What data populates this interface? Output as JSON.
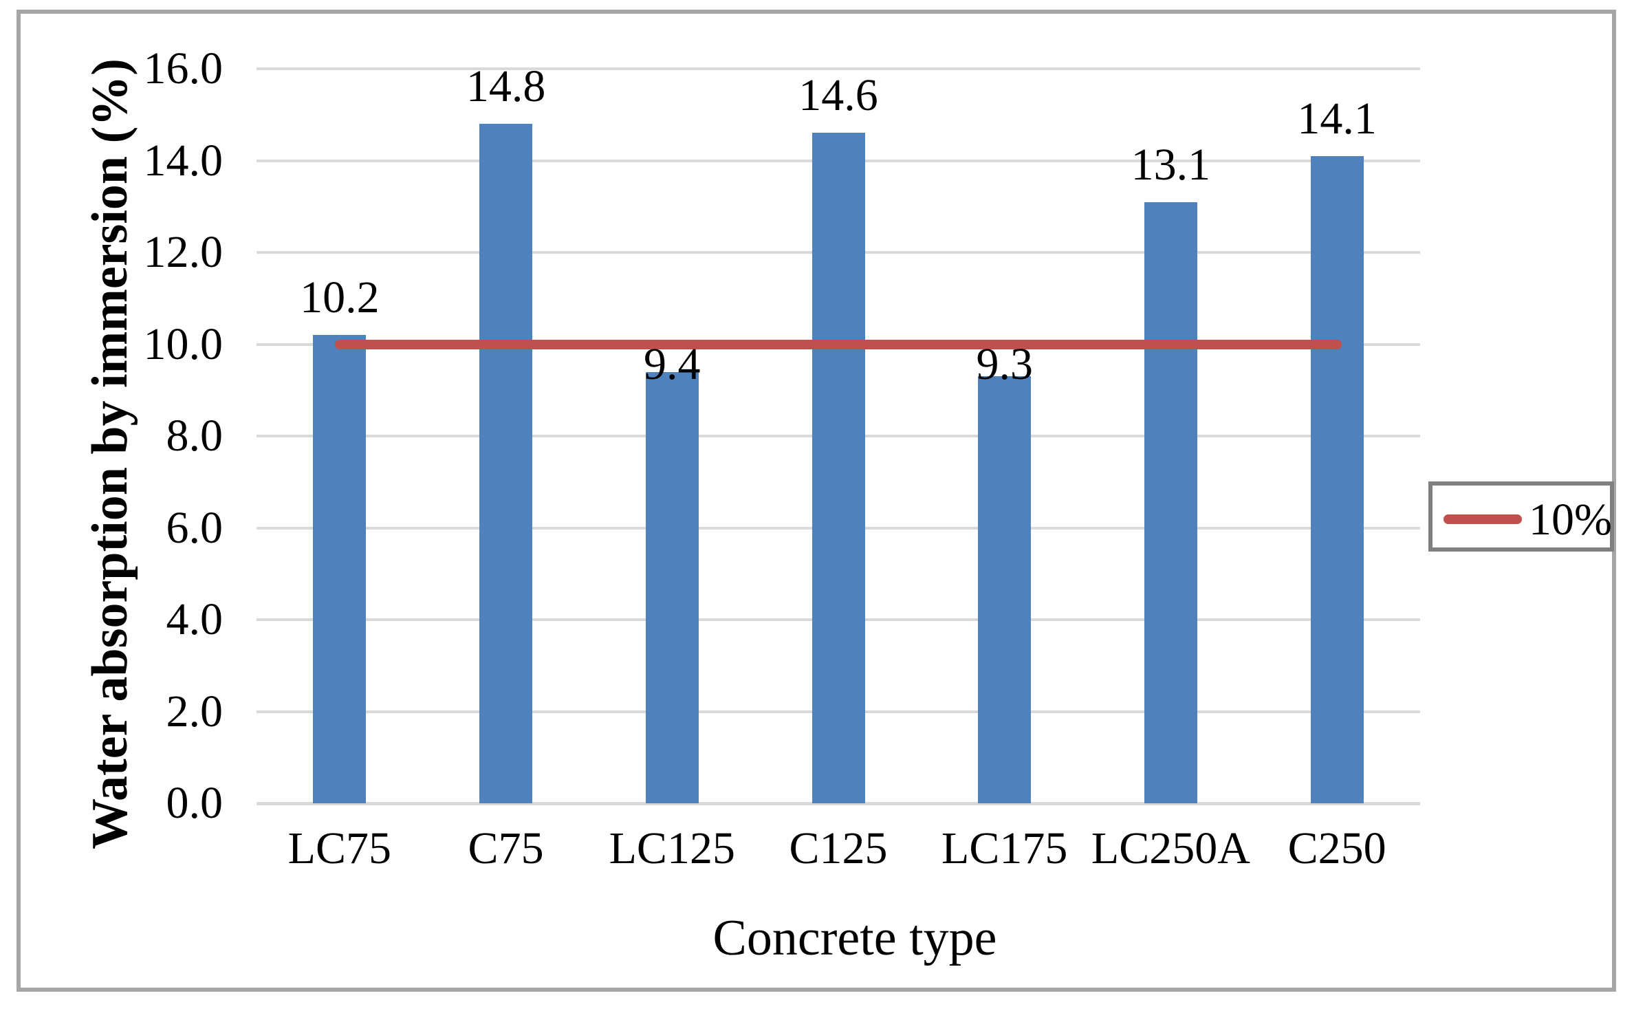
{
  "chart_data": {
    "type": "bar",
    "categories": [
      "LC75",
      "C75",
      "LC125",
      "C125",
      "LC175",
      "LC250A",
      "C250"
    ],
    "values": [
      10.2,
      14.8,
      9.4,
      14.6,
      9.3,
      13.1,
      14.1
    ],
    "data_labels": [
      "10.2",
      "14.8",
      "9.4",
      "14.6",
      "9.3",
      "13.1",
      "14.1"
    ],
    "xlabel": "Concrete type",
    "ylabel": "Water absorption by immersion (%)",
    "ylim": [
      0,
      16
    ],
    "ytick_step": 2,
    "ytick_labels": [
      "0.0",
      "2.0",
      "4.0",
      "6.0",
      "8.0",
      "10.0",
      "12.0",
      "14.0",
      "16.0"
    ],
    "grid": true,
    "legend_position": "right",
    "reference_line": {
      "value": 10,
      "label": "10%"
    },
    "colors": {
      "bar": "#4f81bd",
      "reference_line": "#c0504d",
      "gridline": "#d9d9d9",
      "axis_line": "#d9d9d9",
      "outer_frame": "#a6a6a6",
      "legend_border": "#808080",
      "text": "#000000"
    }
  }
}
